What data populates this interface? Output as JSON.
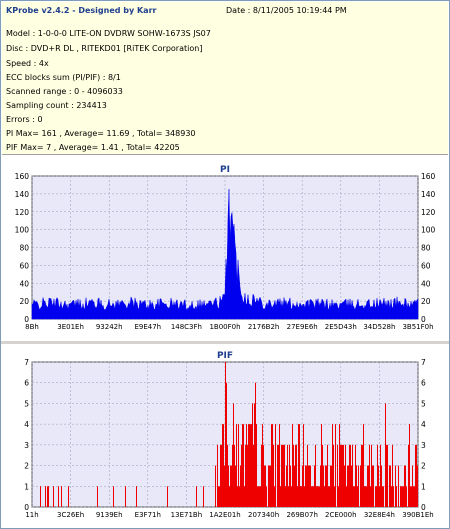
{
  "info": {
    "title": "KProbe v2.4.2 - Designed by Karr",
    "date": "Date : 8/11/2005 10:19:44 PM",
    "model": "Model : 1-0-0-0 LITE-ON DVDRW SOHW-1673S JS07",
    "disc": "Disc : DVD+R DL , RITEKD01 [RiTEK Corporation]",
    "speed": "Speed : 4x",
    "ecc": "ECC blocks sum (PI/PIF) : 8/1",
    "range": "Scanned range : 0 - 4096033",
    "sampling": "Sampling count : 234413",
    "errors": "Errors : 0",
    "pi_stats": "PI Max= 161 , Average= 11.69 , Total= 348930",
    "pif_stats": "PIF Max= 7 , Average= 1.41 , Total= 42205"
  },
  "colors": {
    "pi": "#0000ee",
    "pif": "#ee0000",
    "plot_bg": "#e8e8f8",
    "grid": "#9999bb"
  },
  "chart_data": [
    {
      "type": "area",
      "title": "PI",
      "series": [
        {
          "name": "PI",
          "color": "#0000ee"
        }
      ],
      "ylim": [
        0,
        160
      ],
      "yticks": [
        0,
        20,
        40,
        60,
        80,
        100,
        120,
        140,
        160
      ],
      "xticks": [
        "8Bh",
        "3E01Eh",
        "93242h",
        "E9E47h",
        "148C3Fh",
        "1B00F0h",
        "2176B2h",
        "27E9E6h",
        "2E5D43h",
        "34D528h",
        "3B51F0h"
      ],
      "profile": [
        [
          0,
          16
        ],
        [
          0.05,
          18
        ],
        [
          0.1,
          16
        ],
        [
          0.15,
          18
        ],
        [
          0.2,
          16
        ],
        [
          0.25,
          18
        ],
        [
          0.3,
          16
        ],
        [
          0.35,
          17
        ],
        [
          0.4,
          16
        ],
        [
          0.45,
          17
        ],
        [
          0.48,
          18
        ],
        [
          0.5,
          22
        ],
        [
          0.505,
          80
        ],
        [
          0.51,
          161
        ],
        [
          0.515,
          120
        ],
        [
          0.52,
          95
        ],
        [
          0.53,
          60
        ],
        [
          0.54,
          40
        ],
        [
          0.55,
          25
        ],
        [
          0.6,
          18
        ],
        [
          0.7,
          17
        ],
        [
          0.8,
          16
        ],
        [
          0.9,
          17
        ],
        [
          0.95,
          18
        ],
        [
          1.0,
          16
        ]
      ],
      "grid": true
    },
    {
      "type": "bar",
      "title": "PIF",
      "series": [
        {
          "name": "PIF",
          "color": "#ee0000"
        }
      ],
      "ylim": [
        0,
        7
      ],
      "yticks": [
        0,
        1,
        2,
        3,
        4,
        5,
        6,
        7
      ],
      "xticks": [
        "11h",
        "3C26Eh",
        "9139Eh",
        "E3F71h",
        "13E71Bh",
        "1A2E01h",
        "207340h",
        "269B07h",
        "2CE000h",
        "32E8E4h",
        "390B1Eh"
      ],
      "profile": [
        [
          0,
          0.4
        ],
        [
          0.1,
          0.4
        ],
        [
          0.2,
          0.35
        ],
        [
          0.3,
          0.4
        ],
        [
          0.4,
          0.35
        ],
        [
          0.47,
          0.4
        ],
        [
          0.48,
          1.8
        ],
        [
          0.5,
          3.0
        ],
        [
          0.6,
          2.2
        ],
        [
          0.7,
          2.0
        ],
        [
          0.8,
          2.0
        ],
        [
          0.9,
          1.8
        ],
        [
          1.0,
          1.5
        ]
      ],
      "peak": {
        "x": 0.5,
        "value": 7
      },
      "grid": true
    }
  ]
}
